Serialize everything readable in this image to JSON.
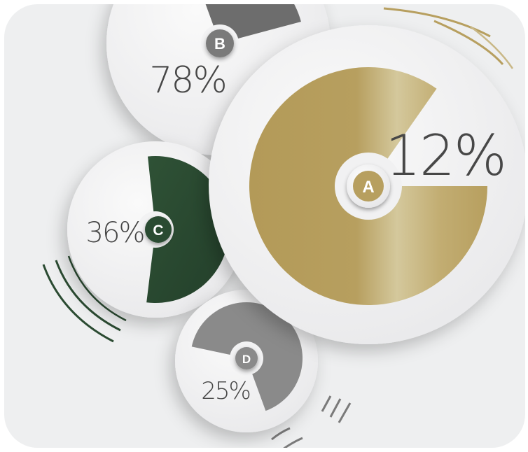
{
  "colors": {
    "background": "#eeeff0",
    "disc": "#f3f3f4",
    "gold": "#b79f5f",
    "gold_light": "#d2c597",
    "green": "#2b4b32",
    "gray_dark": "#6d6d6d",
    "gray_mid": "#8a8a8a",
    "text": "#474747"
  },
  "chart_data": {
    "type": "pie",
    "title": "",
    "segments": [
      {
        "id": "A",
        "label": "A",
        "value_text": "12%",
        "value": 12,
        "color": "#b79f5f"
      },
      {
        "id": "B",
        "label": "B",
        "value_text": "78%",
        "value": 78,
        "color": "#6d6d6d"
      },
      {
        "id": "C",
        "label": "C",
        "value_text": "36%",
        "value": 36,
        "color": "#2b4b32"
      },
      {
        "id": "D",
        "label": "D",
        "value_text": "25%",
        "value": 25,
        "color": "#8a8a8a"
      }
    ]
  }
}
